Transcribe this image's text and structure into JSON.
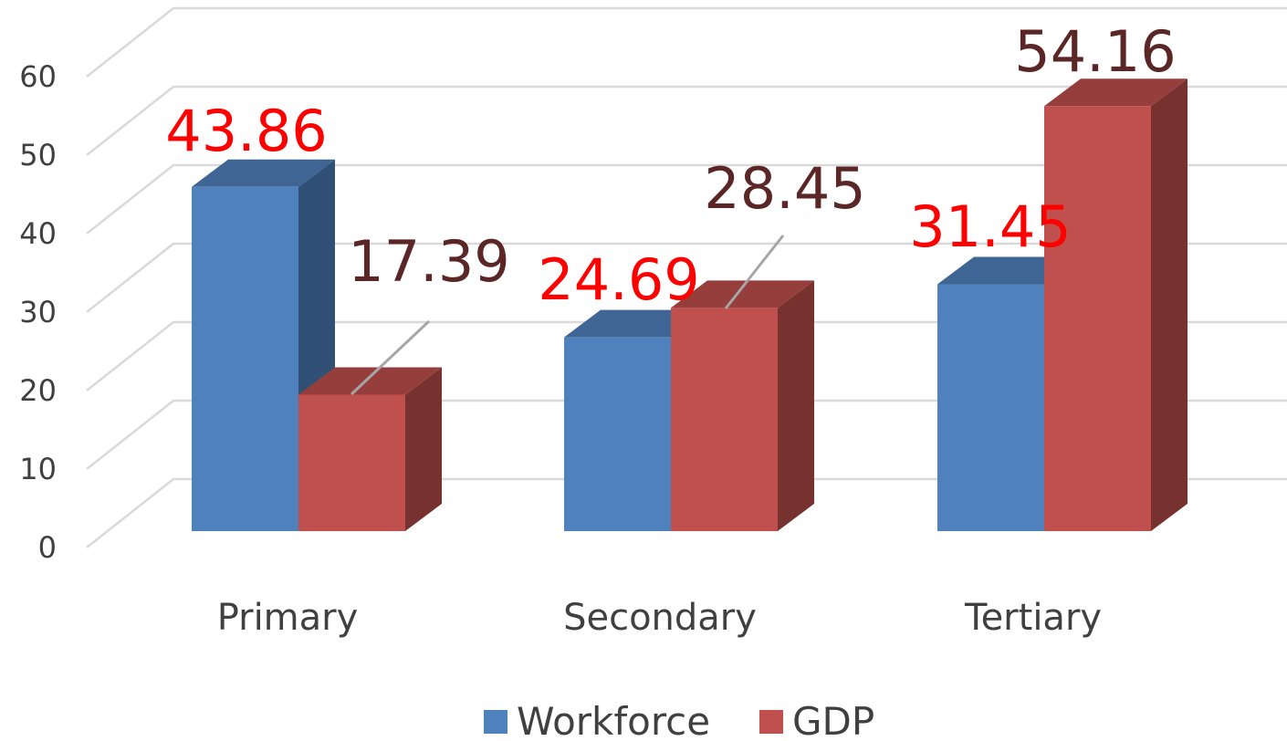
{
  "chart_data": {
    "type": "bar3d",
    "categories": [
      "Primary",
      "Secondary",
      "Tertiary"
    ],
    "series": [
      {
        "name": "Workforce",
        "color": "#4f81bd",
        "label_color": "#ff0000",
        "values": [
          43.86,
          24.69,
          31.45
        ]
      },
      {
        "name": "GDP",
        "color": "#c0504d",
        "label_color": "#5a2626",
        "values": [
          17.39,
          28.45,
          54.16
        ]
      }
    ],
    "ylim": [
      0,
      60
    ],
    "yticks": [
      0,
      10,
      20,
      30,
      40,
      50,
      60
    ],
    "grid": true,
    "legend": "bottom"
  }
}
